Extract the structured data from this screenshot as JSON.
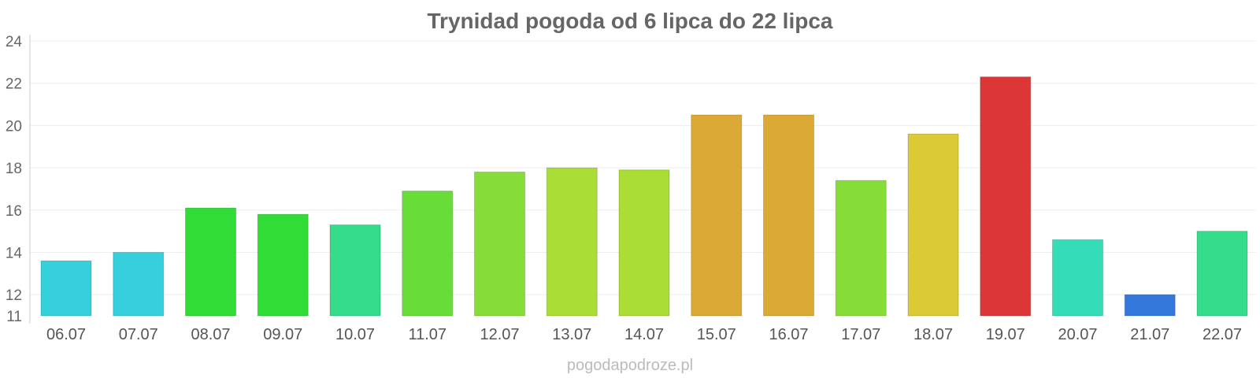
{
  "chart_data": {
    "type": "bar",
    "title": "Trynidad pogoda od 6 lipca do 22 lipca",
    "xlabel": "",
    "ylabel": "",
    "ylim": [
      11,
      24
    ],
    "yticks": [
      "11",
      "12",
      "14",
      "16",
      "18",
      "20",
      "22",
      "24"
    ],
    "ytick_values": [
      11,
      12,
      14,
      16,
      18,
      20,
      22,
      24
    ],
    "grid": true,
    "legend": "none",
    "categories": [
      "06.07",
      "07.07",
      "08.07",
      "09.07",
      "10.07",
      "11.07",
      "12.07",
      "13.07",
      "14.07",
      "15.07",
      "16.07",
      "17.07",
      "18.07",
      "19.07",
      "20.07",
      "21.07",
      "22.07"
    ],
    "values": [
      13.6,
      14.0,
      16.1,
      15.8,
      15.3,
      16.9,
      17.8,
      18.0,
      17.9,
      20.5,
      20.5,
      17.4,
      19.6,
      22.3,
      14.6,
      12.0,
      15.0
    ],
    "colors": [
      "#35d0dc",
      "#35d0dc",
      "#31dc37",
      "#31dc37",
      "#35dc8a",
      "#69dd37",
      "#87dd37",
      "#aadd35",
      "#aadd35",
      "#dba935",
      "#dba935",
      "#87dd37",
      "#dbca35",
      "#dc3636",
      "#35dcb8",
      "#3478dc",
      "#35dc8a"
    ]
  },
  "footer": {
    "credit": "pogodapodroze.pl"
  }
}
